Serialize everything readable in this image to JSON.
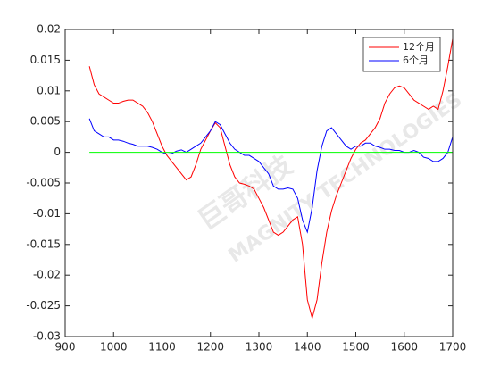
{
  "chart_data": {
    "type": "line",
    "watermark": [
      "巨哥科技",
      "MAGNITY TECHNOLOGIES"
    ],
    "x": [
      950,
      960,
      970,
      980,
      990,
      1000,
      1010,
      1020,
      1030,
      1040,
      1050,
      1060,
      1070,
      1080,
      1090,
      1100,
      1110,
      1120,
      1130,
      1140,
      1150,
      1160,
      1170,
      1180,
      1190,
      1200,
      1210,
      1220,
      1230,
      1240,
      1250,
      1260,
      1270,
      1280,
      1290,
      1300,
      1310,
      1320,
      1330,
      1340,
      1350,
      1360,
      1370,
      1380,
      1390,
      1400,
      1410,
      1420,
      1430,
      1440,
      1450,
      1460,
      1470,
      1480,
      1490,
      1500,
      1510,
      1520,
      1530,
      1540,
      1550,
      1560,
      1570,
      1580,
      1590,
      1600,
      1610,
      1620,
      1630,
      1640,
      1650,
      1660,
      1670,
      1680,
      1690,
      1700
    ],
    "series": [
      {
        "name": "12个月",
        "color": "#ff0000",
        "values": [
          0.014,
          0.011,
          0.0095,
          0.009,
          0.0085,
          0.008,
          0.008,
          0.0083,
          0.0085,
          0.0085,
          0.008,
          0.0075,
          0.0065,
          0.005,
          0.003,
          0.001,
          -0.0005,
          -0.0015,
          -0.0025,
          -0.0035,
          -0.0045,
          -0.004,
          -0.002,
          0.0005,
          0.002,
          0.0035,
          0.0048,
          0.004,
          0.001,
          -0.002,
          -0.004,
          -0.005,
          -0.0052,
          -0.0055,
          -0.006,
          -0.0075,
          -0.009,
          -0.011,
          -0.013,
          -0.0135,
          -0.013,
          -0.012,
          -0.011,
          -0.0105,
          -0.015,
          -0.024,
          -0.027,
          -0.024,
          -0.018,
          -0.013,
          -0.0095,
          -0.007,
          -0.005,
          -0.003,
          -0.001,
          0.0005,
          0.0015,
          0.002,
          0.003,
          0.004,
          0.0055,
          0.008,
          0.0095,
          0.0105,
          0.0108,
          0.0105,
          0.0095,
          0.0085,
          0.008,
          0.0075,
          0.007,
          0.0075,
          0.007,
          0.01,
          0.014,
          0.0185
        ]
      },
      {
        "name": "6个月",
        "color": "#0000ff",
        "values": [
          0.0055,
          0.0035,
          0.003,
          0.0025,
          0.0025,
          0.002,
          0.002,
          0.0018,
          0.0015,
          0.0013,
          0.001,
          0.001,
          0.001,
          0.0008,
          0.0005,
          0,
          -0.0003,
          -0.0002,
          0.0002,
          0.0004,
          0,
          0.0005,
          0.001,
          0.0015,
          0.0025,
          0.0035,
          0.005,
          0.0045,
          0.003,
          0.0015,
          0.0005,
          0,
          -0.0005,
          -0.0005,
          -0.001,
          -0.0015,
          -0.0025,
          -0.0035,
          -0.0055,
          -0.006,
          -0.006,
          -0.0058,
          -0.006,
          -0.0075,
          -0.011,
          -0.013,
          -0.009,
          -0.003,
          0.001,
          0.0035,
          0.004,
          0.003,
          0.002,
          0.001,
          0.0005,
          0.001,
          0.001,
          0.0015,
          0.0015,
          0.001,
          0.0008,
          0.0005,
          0.0005,
          0.0003,
          0.0003,
          0,
          0,
          0.0003,
          0,
          -0.0008,
          -0.001,
          -0.0015,
          -0.0015,
          -0.001,
          0,
          0.0025
        ]
      },
      {
        "color": "#00ff00",
        "x": [
          950,
          1700
        ],
        "values": [
          0,
          0
        ]
      }
    ],
    "xlim": [
      900,
      1700
    ],
    "xticks": [
      900,
      1000,
      1100,
      1200,
      1300,
      1400,
      1500,
      1600,
      1700
    ],
    "ylim": [
      -0.03,
      0.02
    ],
    "yticks": [
      -0.03,
      -0.025,
      -0.02,
      -0.015,
      -0.01,
      -0.005,
      0,
      0.005,
      0.01,
      0.015,
      0.02
    ],
    "legend": "top-right"
  }
}
